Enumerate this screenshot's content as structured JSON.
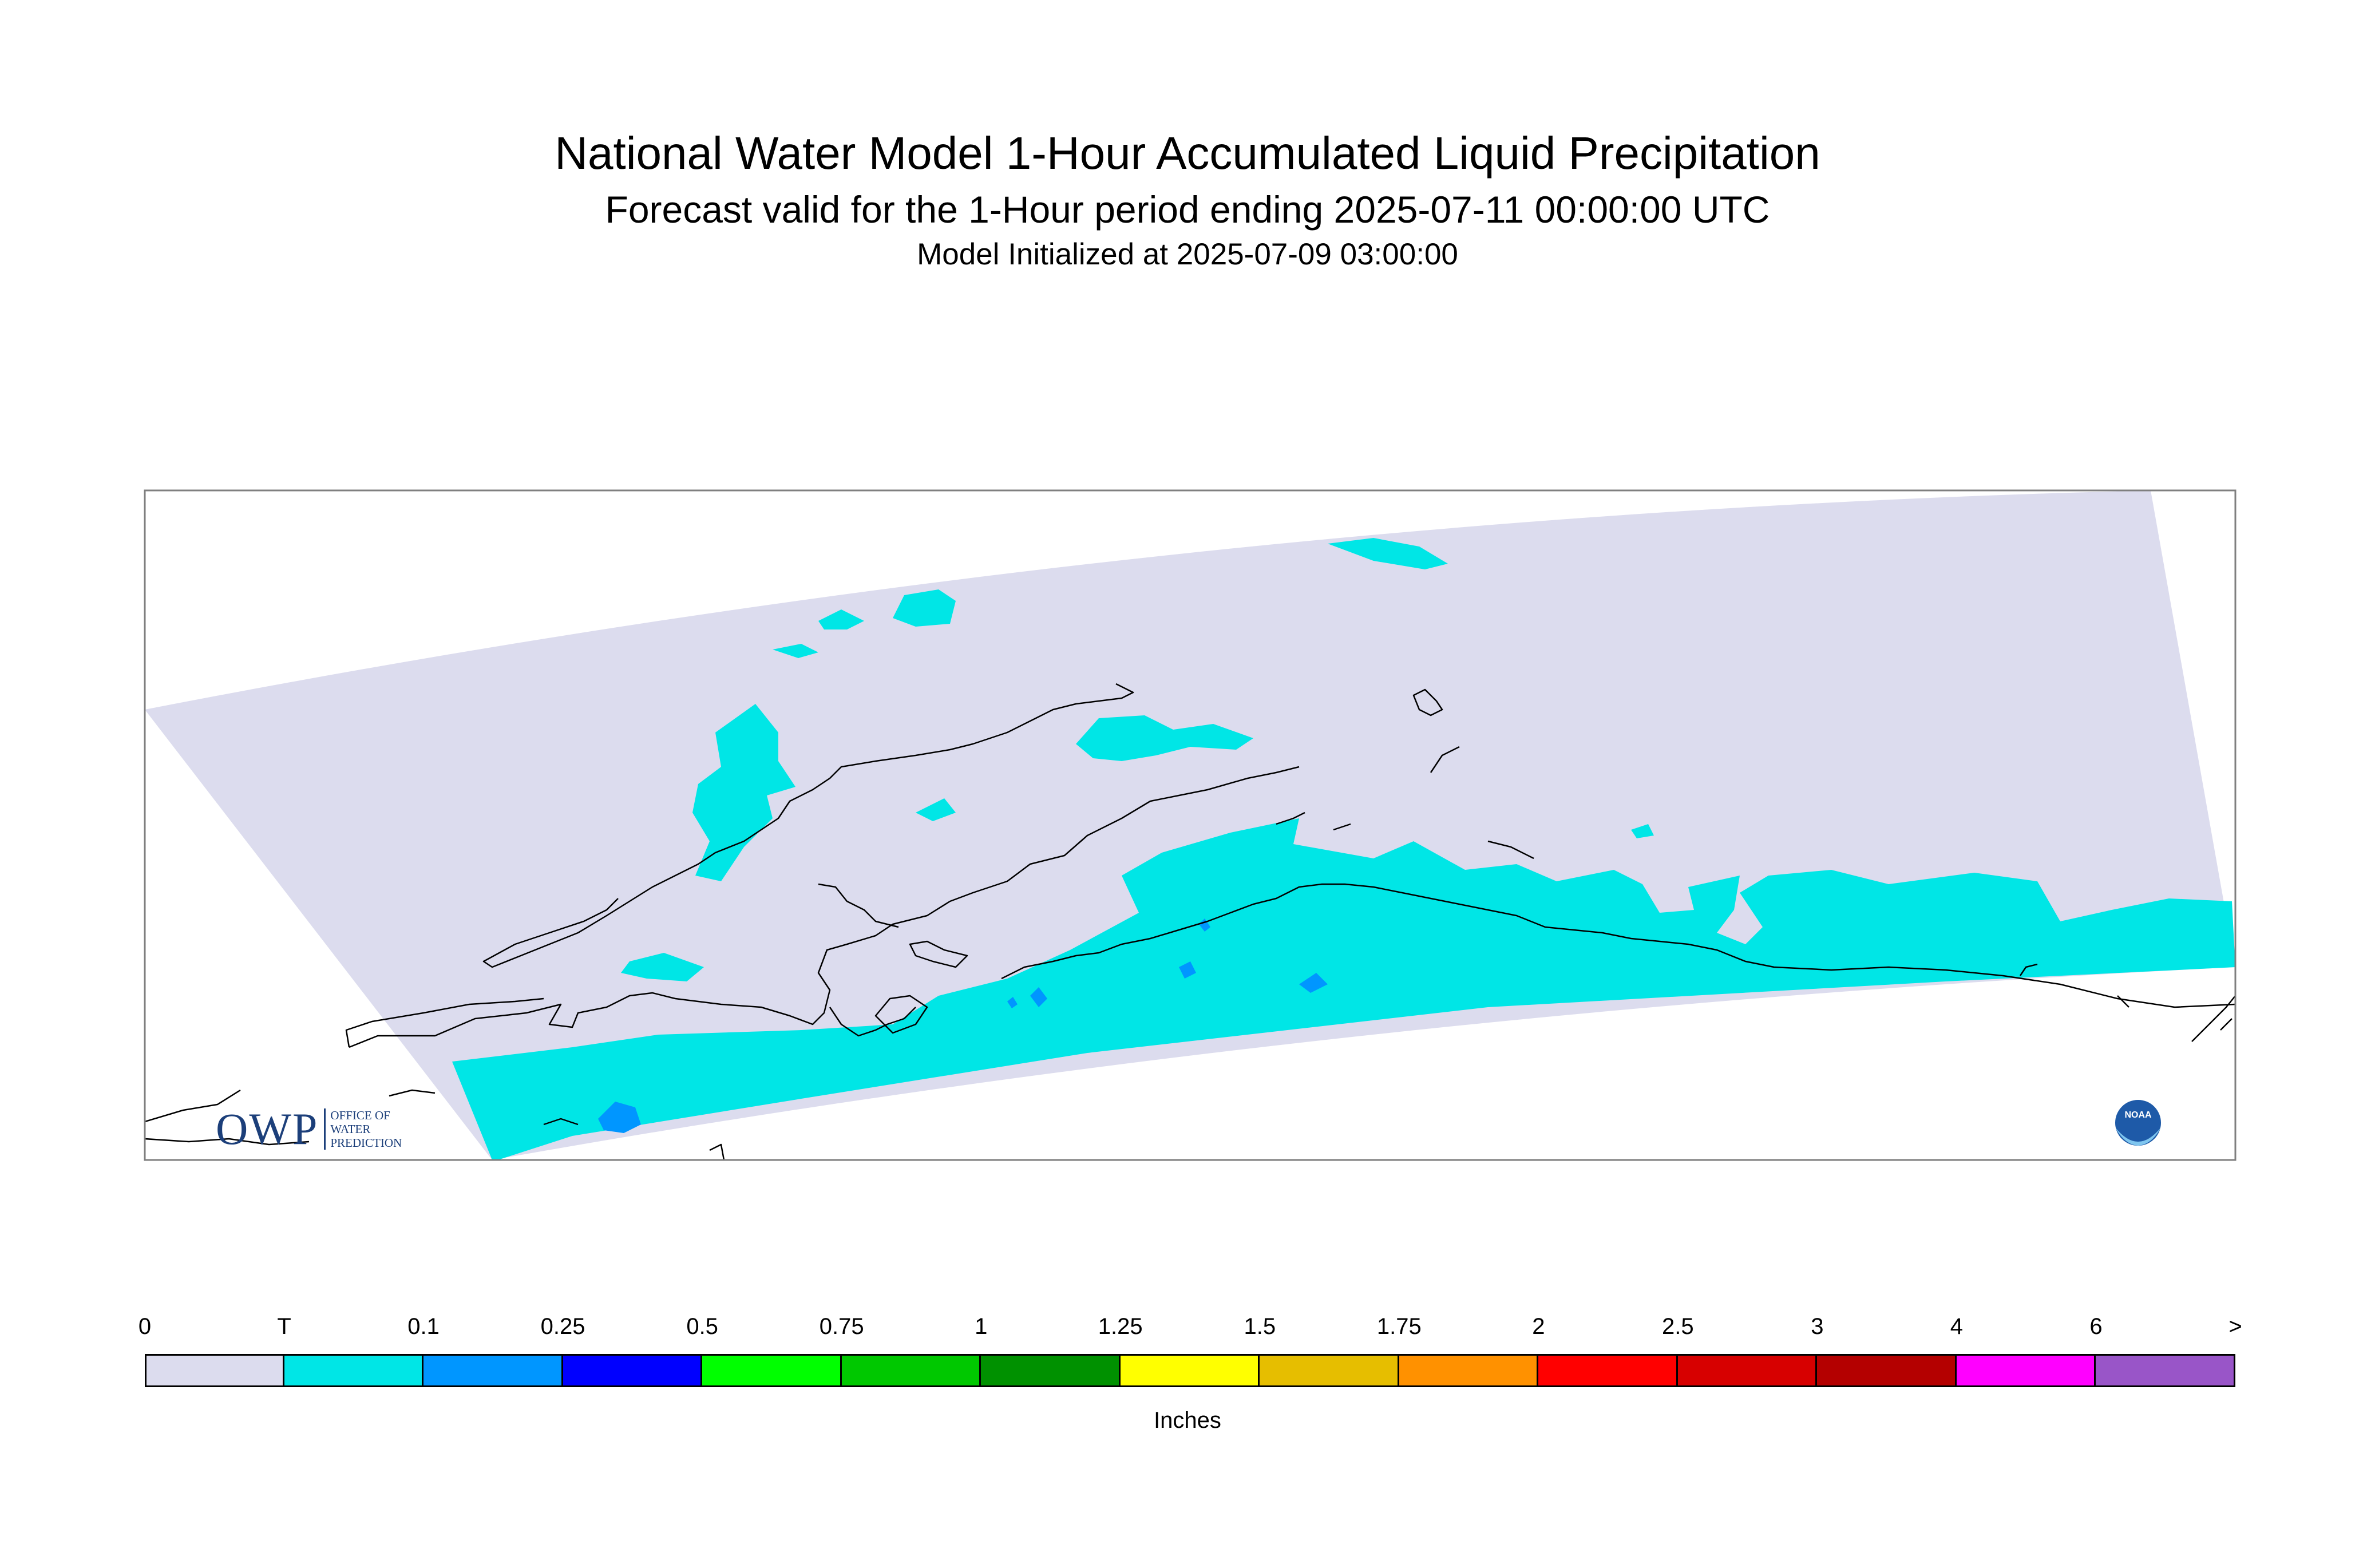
{
  "title": "National Water Model 1-Hour Accumulated Liquid Precipitation",
  "subtitle": "Forecast valid for the 1-Hour period ending 2025-07-11 00:00:00 UTC",
  "init_line": "Model Initialized at 2025-07-09 03:00:00",
  "logo": {
    "owp_text": "OWP",
    "owp_subtext": "OFFICE OF WATER PREDICTION",
    "noaa_text": "NOAA"
  },
  "legend": {
    "units": "Inches",
    "ticks": [
      "0",
      "T",
      "0.1",
      "0.25",
      "0.5",
      "0.75",
      "1",
      "1.25",
      "1.5",
      "1.75",
      "2",
      "2.5",
      "3",
      "4",
      "6",
      ">"
    ],
    "colors": [
      "#dcdcee",
      "#00e6e6",
      "#0096ff",
      "#0000ff",
      "#00ff00",
      "#00c800",
      "#009100",
      "#ffff00",
      "#e6be00",
      "#ff9100",
      "#ff0000",
      "#d70000",
      "#b40000",
      "#ff00ff",
      "#9955c8"
    ]
  },
  "map": {
    "background_color": "#dcdcee",
    "precip_color": "#00e6e6",
    "heavy_precip_color": "#0096ff",
    "coastline_color": "#000000"
  }
}
